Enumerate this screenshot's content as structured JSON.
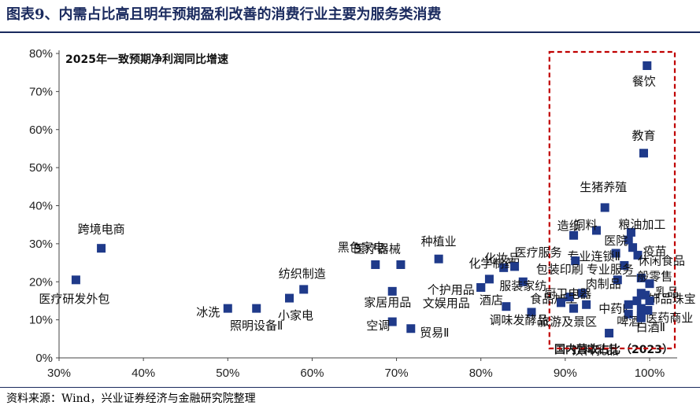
{
  "title": "图表9、内需占比高且明年预期盈利改善的消费行业主要为服务类消费",
  "source": "资料来源：Wind，兴业证券经济与金融研究院整理",
  "chart_data": {
    "type": "scatter",
    "ylabel": "2025年一致预期净利润同比增速",
    "xlabel": "国内营收占比（2023）",
    "xlim": [
      0.3,
      1.02
    ],
    "ylim": [
      0.0,
      0.8
    ],
    "x_ticks": [
      "30%",
      "40%",
      "50%",
      "60%",
      "70%",
      "80%",
      "90%",
      "100%"
    ],
    "y_ticks": [
      "0%",
      "10%",
      "20%",
      "30%",
      "40%",
      "50%",
      "60%",
      "70%",
      "80%"
    ],
    "marker_color": "#1f3a8a",
    "highlight_box_color": "#c00000",
    "highlight_region": {
      "x": [
        0.885,
        1.01
      ],
      "y": [
        0.0,
        0.8
      ]
    },
    "points": [
      {
        "label": "跨境电商",
        "x": 0.35,
        "y": 0.288
      },
      {
        "label": "医疗研发外包",
        "x": 0.32,
        "y": 0.205
      },
      {
        "label": "冰洗",
        "x": 0.5,
        "y": 0.13
      },
      {
        "label": "照明设备Ⅱ",
        "x": 0.534,
        "y": 0.13
      },
      {
        "label": "小家电",
        "x": 0.573,
        "y": 0.157
      },
      {
        "label": "纺织制造",
        "x": 0.59,
        "y": 0.18
      },
      {
        "label": "医疗器械",
        "x": 0.705,
        "y": 0.245
      },
      {
        "label": "黑色家电",
        "x": 0.675,
        "y": 0.245
      },
      {
        "label": "家居用品",
        "x": 0.695,
        "y": 0.175
      },
      {
        "label": "空调",
        "x": 0.695,
        "y": 0.095
      },
      {
        "label": "贸易Ⅱ",
        "x": 0.717,
        "y": 0.077
      },
      {
        "label": "种植业",
        "x": 0.75,
        "y": 0.26
      },
      {
        "label": "化妆品",
        "x": 0.827,
        "y": 0.237
      },
      {
        "label": "化学制药",
        "x": 0.81,
        "y": 0.207
      },
      {
        "label": "个护用品",
        "x": 0.8,
        "y": 0.185
      },
      {
        "label": "文娱用品",
        "x": 0.8,
        "y": 0.185
      },
      {
        "label": "医疗服务",
        "x": 0.84,
        "y": 0.24
      },
      {
        "label": "服装家纺",
        "x": 0.85,
        "y": 0.2
      },
      {
        "label": "酒店",
        "x": 0.83,
        "y": 0.135
      },
      {
        "label": "调味发酵品",
        "x": 0.86,
        "y": 0.12
      },
      {
        "label": "餐饮",
        "x": 0.997,
        "y": 0.768
      },
      {
        "label": "教育",
        "x": 0.993,
        "y": 0.538
      },
      {
        "label": "生猪养殖",
        "x": 0.947,
        "y": 0.395
      },
      {
        "label": "饲料",
        "x": 0.937,
        "y": 0.335
      },
      {
        "label": "粮油加工",
        "x": 0.978,
        "y": 0.33
      },
      {
        "label": "造纸",
        "x": 0.91,
        "y": 0.322
      },
      {
        "label": "医院",
        "x": 0.975,
        "y": 0.31
      },
      {
        "label": "疫苗",
        "x": 0.98,
        "y": 0.29
      },
      {
        "label": "专业连锁Ⅱ",
        "x": 0.96,
        "y": 0.275
      },
      {
        "label": "休闲食品",
        "x": 0.986,
        "y": 0.27
      },
      {
        "label": "包装印刷",
        "x": 0.912,
        "y": 0.255
      },
      {
        "label": "专业服务",
        "x": 0.97,
        "y": 0.243
      },
      {
        "label": "一般零售",
        "x": 0.99,
        "y": 0.21
      },
      {
        "label": "肉制品",
        "x": 0.962,
        "y": 0.205
      },
      {
        "label": "乳品",
        "x": 1.0,
        "y": 0.195
      },
      {
        "label": "食品加工",
        "x": 0.92,
        "y": 0.17
      },
      {
        "label": "厨卫电器",
        "x": 0.905,
        "y": 0.16
      },
      {
        "label": "饰品珠宝",
        "x": 0.995,
        "y": 0.165
      },
      {
        "label": "中药Ⅱ",
        "x": 0.985,
        "y": 0.15
      },
      {
        "label": "医药商业",
        "x": 0.99,
        "y": 0.13
      },
      {
        "label": "啤酒",
        "x": 0.975,
        "y": 0.115
      },
      {
        "label": "旅游及景区",
        "x": 0.91,
        "y": 0.13
      },
      {
        "label": "饮料乳品",
        "x": 0.952,
        "y": 0.065
      },
      {
        "label": "白酒Ⅱ",
        "x": 0.99,
        "y": 0.11
      },
      {
        "label": "",
        "x": 0.895,
        "y": 0.145
      },
      {
        "label": "",
        "x": 0.925,
        "y": 0.14
      },
      {
        "label": "",
        "x": 0.99,
        "y": 0.17
      },
      {
        "label": "",
        "x": 1.0,
        "y": 0.15
      },
      {
        "label": "",
        "x": 0.998,
        "y": 0.125
      },
      {
        "label": "",
        "x": 0.99,
        "y": 0.105
      },
      {
        "label": "",
        "x": 0.975,
        "y": 0.14
      }
    ]
  }
}
